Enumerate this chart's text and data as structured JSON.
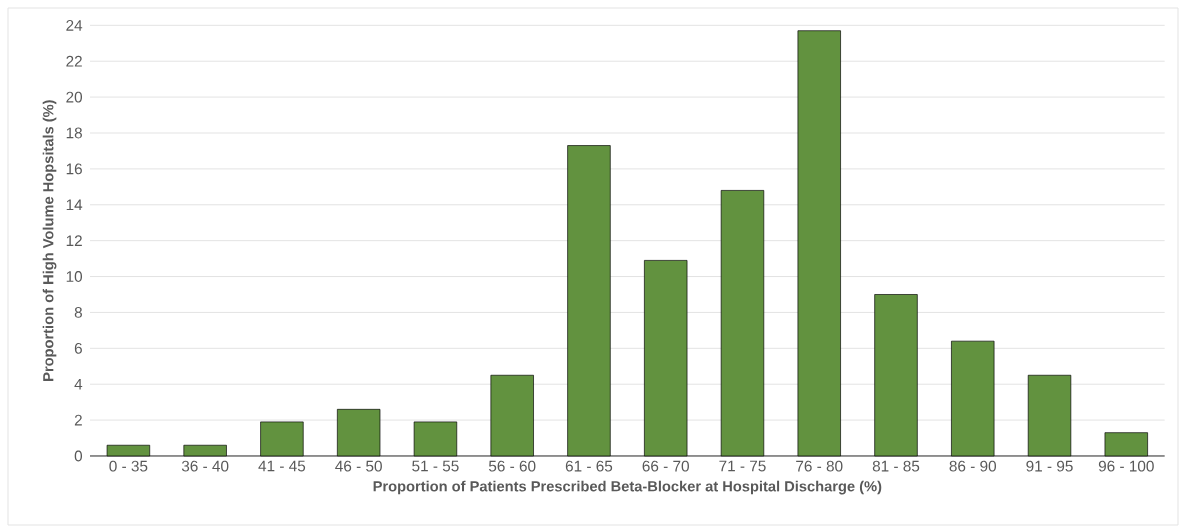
{
  "chart_data": {
    "type": "bar",
    "xlabel": "Proportion of Patients Prescribed Beta-Blocker at Hospital Discharge (%)",
    "ylabel": "Proportion of High Volume Hopsitals (%)",
    "categories": [
      "0 - 35",
      "36 - 40",
      "41 - 45",
      "46 - 50",
      "51 - 55",
      "56 - 60",
      "61 - 65",
      "66 - 70",
      "71 - 75",
      "76 - 80",
      "81 - 85",
      "86 - 90",
      "91 - 95",
      "96 - 100"
    ],
    "values": [
      0.6,
      0.6,
      1.9,
      2.6,
      1.9,
      4.5,
      17.3,
      10.9,
      14.8,
      23.7,
      9.0,
      6.4,
      4.5,
      1.3
    ],
    "color": "#62923f",
    "ylim": [
      0,
      24
    ],
    "yticks": [
      0,
      2,
      4,
      6,
      8,
      10,
      12,
      14,
      16,
      18,
      20,
      22,
      24
    ],
    "grid": "y"
  }
}
